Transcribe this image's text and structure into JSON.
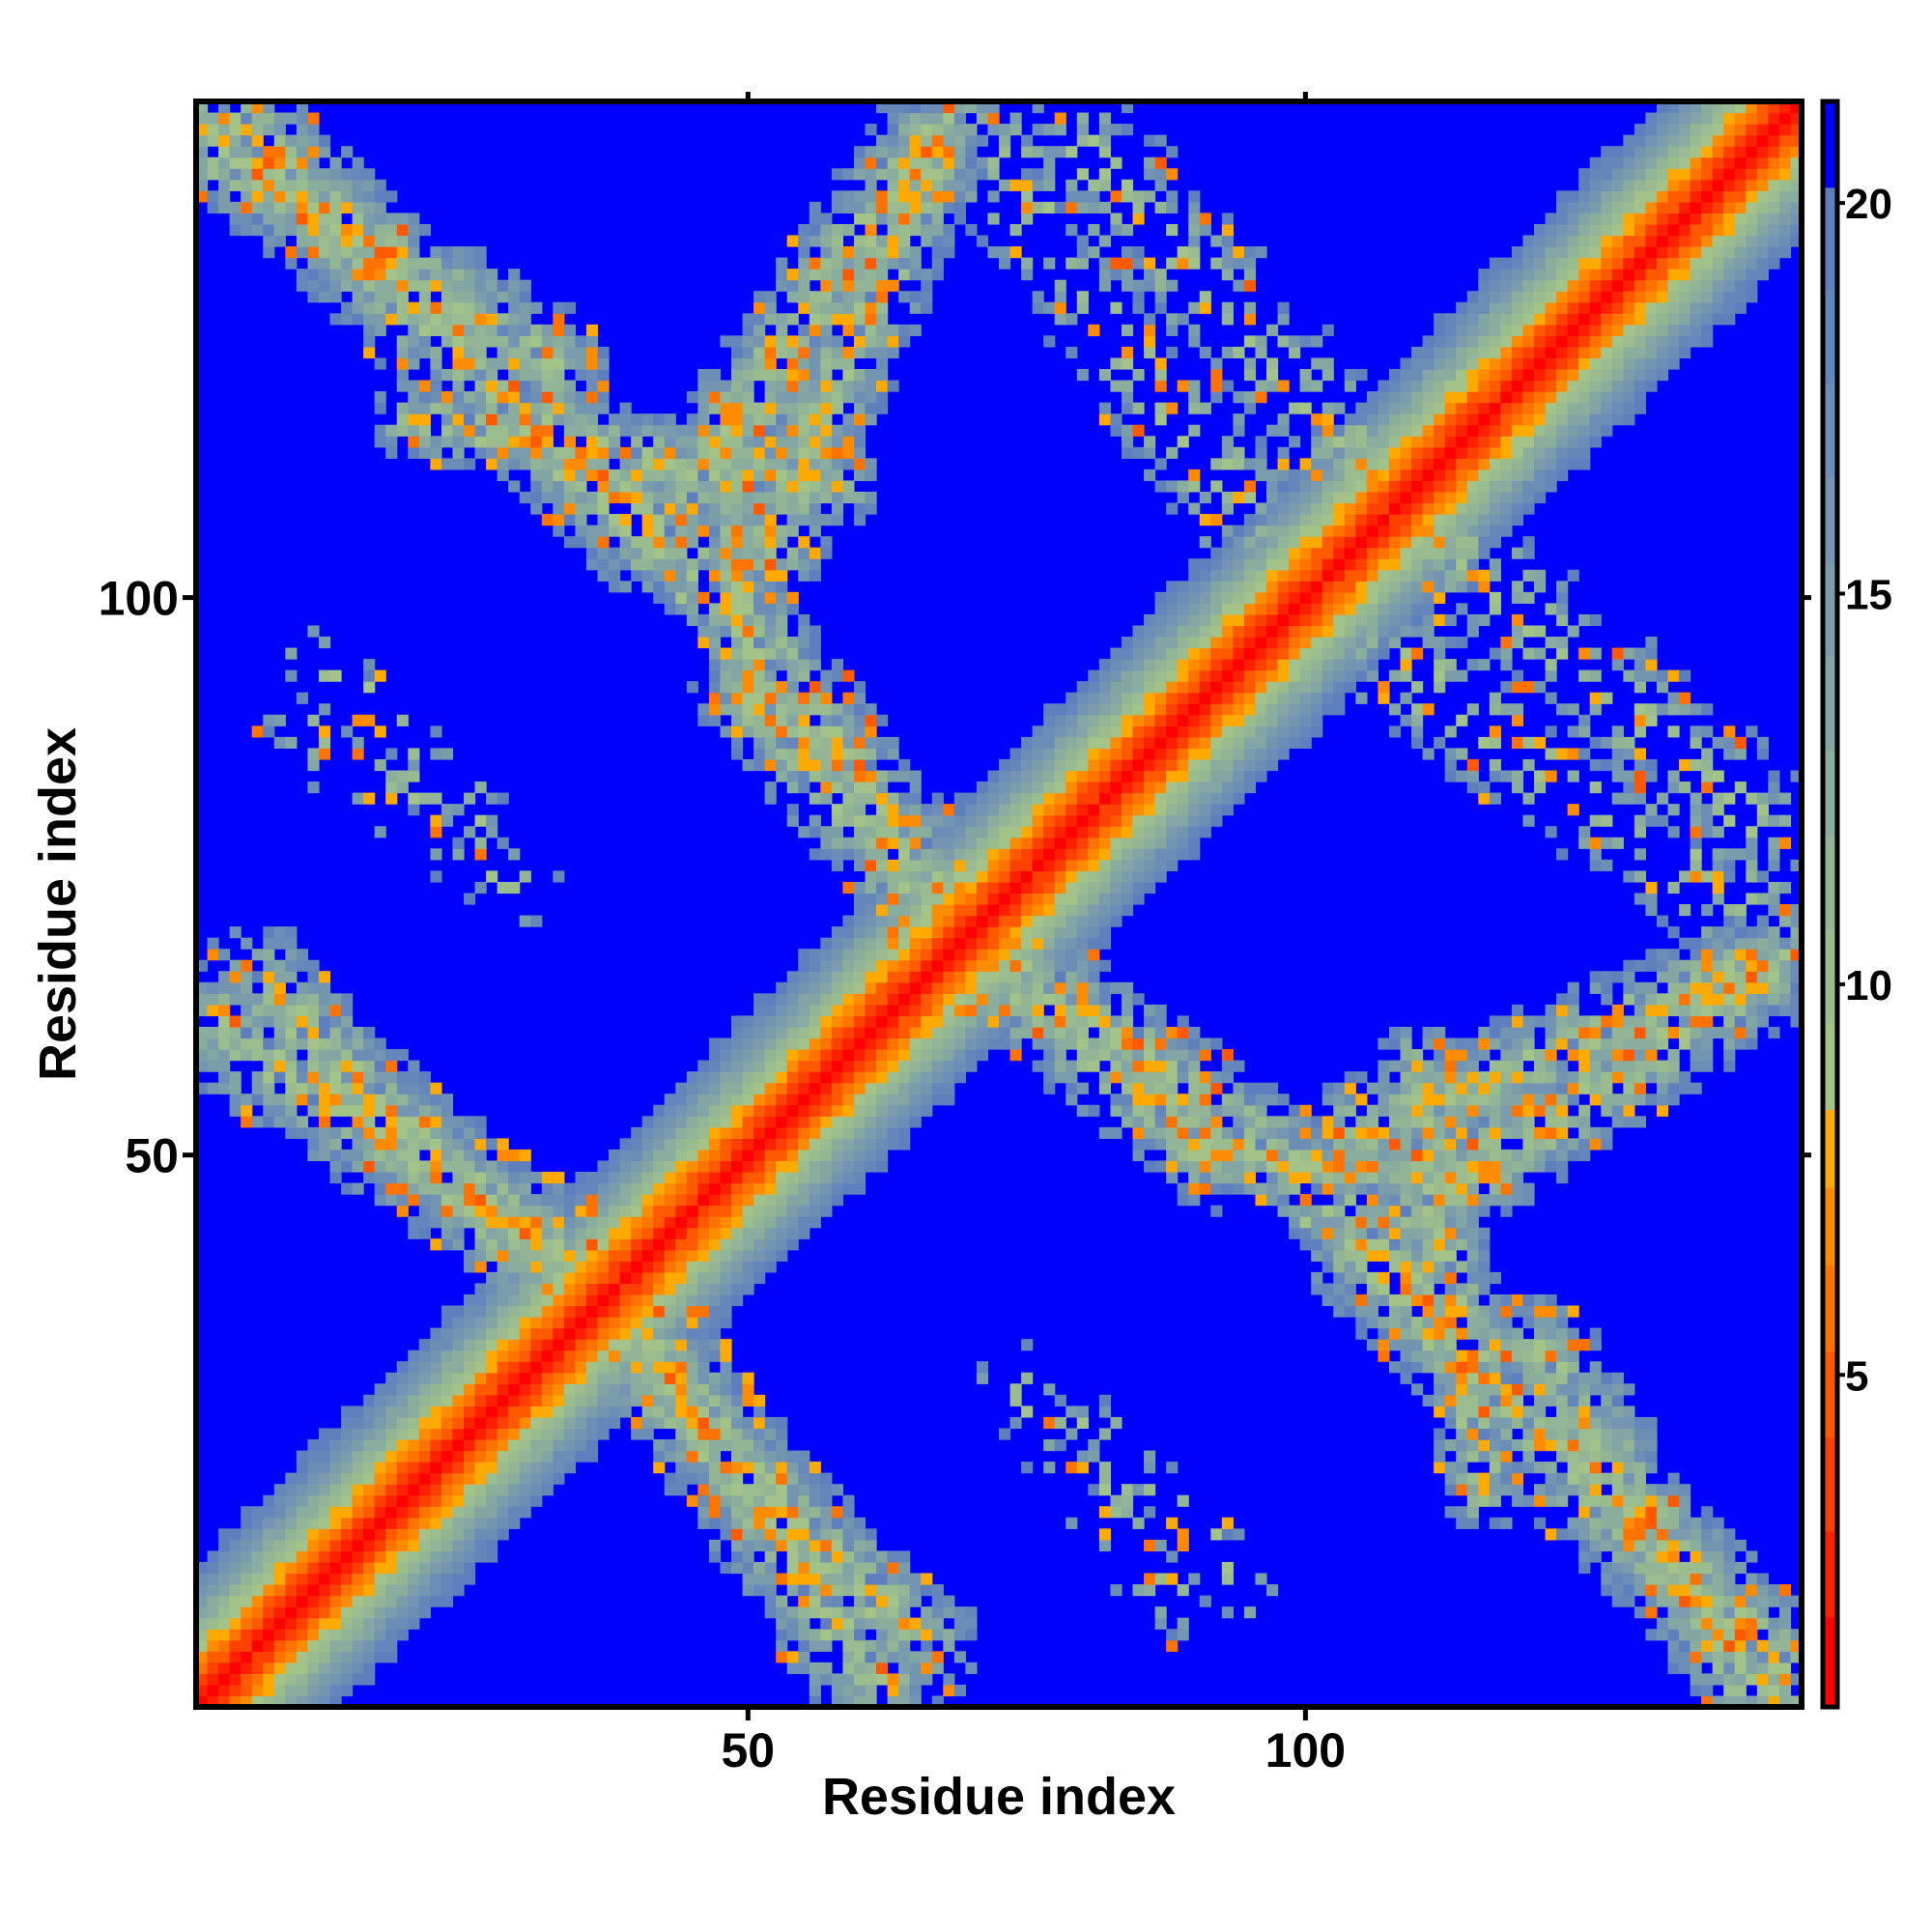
{
  "chart_data": {
    "type": "heatmap",
    "title": "",
    "xlabel": "Residue index",
    "ylabel": "Residue index",
    "n_residues": 144,
    "xlim": [
      0.5,
      144.5
    ],
    "ylim": [
      0.5,
      144.5
    ],
    "x_ticks": [
      50,
      100
    ],
    "y_ticks": [
      50,
      100
    ],
    "x_tick_labels": [
      "50",
      "100"
    ],
    "y_tick_labels": [
      "50",
      "100"
    ],
    "symmetric": true,
    "value_description": "pairwise residue distance",
    "background_value": 25,
    "diagonal_model": {
      "offset": 1.0,
      "slope_per_residue_separation": 1.5
    },
    "contact_bands": [
      {
        "from": [
          2,
          140
        ],
        "to": [
          33,
          121
        ],
        "halfwidth": 5,
        "density": 0.88
      },
      {
        "from": [
          20,
          116
        ],
        "to": [
          58,
          110
        ],
        "halfwidth": 4,
        "density": 0.85
      },
      {
        "from": [
          66,
          141
        ],
        "to": [
          45,
          110
        ],
        "halfwidth": 5,
        "density": 0.85
      },
      {
        "from": [
          45,
          104
        ],
        "to": [
          70,
          70
        ],
        "halfwidth": 5,
        "density": 0.82
      },
      {
        "from": [
          70,
          68
        ],
        "to": [
          92,
          50
        ],
        "halfwidth": 5,
        "density": 0.85
      },
      {
        "from": [
          90,
          50
        ],
        "to": [
          118,
          48
        ],
        "halfwidth": 3,
        "density": 0.85
      },
      {
        "from": [
          105,
          52
        ],
        "to": [
          143,
          68
        ],
        "halfwidth": 5,
        "density": 0.88
      },
      {
        "from": [
          105,
          42
        ],
        "to": [
          143,
          3
        ],
        "halfwidth": 6,
        "density": 0.88
      },
      {
        "from": [
          2,
          62
        ],
        "to": [
          32,
          42
        ],
        "halfwidth": 6,
        "density": 0.88
      },
      {
        "from": [
          35,
          36
        ],
        "to": [
          66,
          6
        ],
        "halfwidth": 5,
        "density": 0.85
      },
      {
        "from": [
          80,
          140
        ],
        "to": [
          112,
          104
        ],
        "halfwidth": 6,
        "density": 0.45
      },
      {
        "from": [
          10,
          88
        ],
        "to": [
          30,
          74
        ],
        "halfwidth": 4,
        "density": 0.22
      },
      {
        "from": [
          80,
          26
        ],
        "to": [
          95,
          10
        ],
        "halfwidth": 4,
        "density": 0.22
      },
      {
        "from": [
          108,
          94
        ],
        "to": [
          140,
          72
        ],
        "halfwidth": 6,
        "density": 0.4
      }
    ],
    "colorbar": {
      "range": [
        0.75,
        21.3
      ],
      "ticks": [
        5,
        10,
        15,
        20
      ],
      "tick_labels": [
        "5",
        "10",
        "15",
        "20"
      ],
      "bins": [
        {
          "max": 1.9,
          "color": "#ff0000"
        },
        {
          "max": 3.0,
          "color": "#ff2000"
        },
        {
          "max": 4.2,
          "color": "#ff4000"
        },
        {
          "max": 5.3,
          "color": "#ff5a00"
        },
        {
          "max": 6.4,
          "color": "#ff7300"
        },
        {
          "max": 7.4,
          "color": "#ff8c00"
        },
        {
          "max": 8.4,
          "color": "#ffaa00"
        },
        {
          "max": 9.5,
          "color": "#a3c388"
        },
        {
          "max": 10.7,
          "color": "#9bbc8f"
        },
        {
          "max": 11.9,
          "color": "#93b596"
        },
        {
          "max": 13.0,
          "color": "#8bad9d"
        },
        {
          "max": 14.2,
          "color": "#83a5a4"
        },
        {
          "max": 15.4,
          "color": "#7b9dab"
        },
        {
          "max": 16.5,
          "color": "#7395b1"
        },
        {
          "max": 17.7,
          "color": "#6b8db6"
        },
        {
          "max": 18.9,
          "color": "#6486ba"
        },
        {
          "max": 20.2,
          "color": "#5e7fbd"
        },
        {
          "max": 99,
          "color": "#0000ff"
        }
      ]
    }
  }
}
